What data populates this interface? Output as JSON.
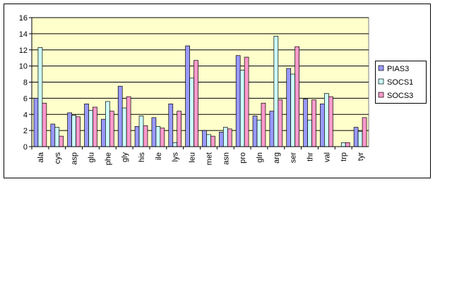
{
  "chart_data": {
    "type": "bar",
    "categories": [
      "ala",
      "cys",
      "asp",
      "glu",
      "phe",
      "gly",
      "his",
      "ile",
      "lys",
      "leu",
      "met",
      "asn",
      "pro",
      "gln",
      "arg",
      "ser",
      "thr",
      "val",
      "trp",
      "tyr"
    ],
    "series": [
      {
        "name": "PIAS3",
        "color": "#9999ff",
        "values": [
          6.0,
          2.8,
          4.2,
          5.3,
          3.4,
          7.5,
          2.5,
          3.6,
          5.3,
          12.5,
          2.0,
          1.8,
          11.3,
          3.8,
          4.4,
          9.7,
          5.9,
          5.3,
          0,
          2.4
        ]
      },
      {
        "name": "SOCS1",
        "color": "#ccffff",
        "values": [
          12.3,
          2.4,
          3.9,
          4.5,
          5.6,
          4.8,
          3.8,
          2.5,
          0.5,
          8.5,
          1.5,
          2.4,
          9.5,
          3.3,
          13.7,
          9.0,
          3.3,
          6.6,
          0.5,
          1.9
        ]
      },
      {
        "name": "SOCS3",
        "color": "#ff99cc",
        "values": [
          5.4,
          1.3,
          3.7,
          4.9,
          4.4,
          6.2,
          2.6,
          2.3,
          4.4,
          10.7,
          1.3,
          2.2,
          11.1,
          5.4,
          5.8,
          12.4,
          5.8,
          6.2,
          0.5,
          3.6
        ]
      }
    ],
    "ylim": [
      0,
      16
    ],
    "yticks": [
      0,
      2,
      4,
      6,
      8,
      10,
      12,
      14,
      16
    ],
    "grid": true,
    "legend": "right"
  }
}
